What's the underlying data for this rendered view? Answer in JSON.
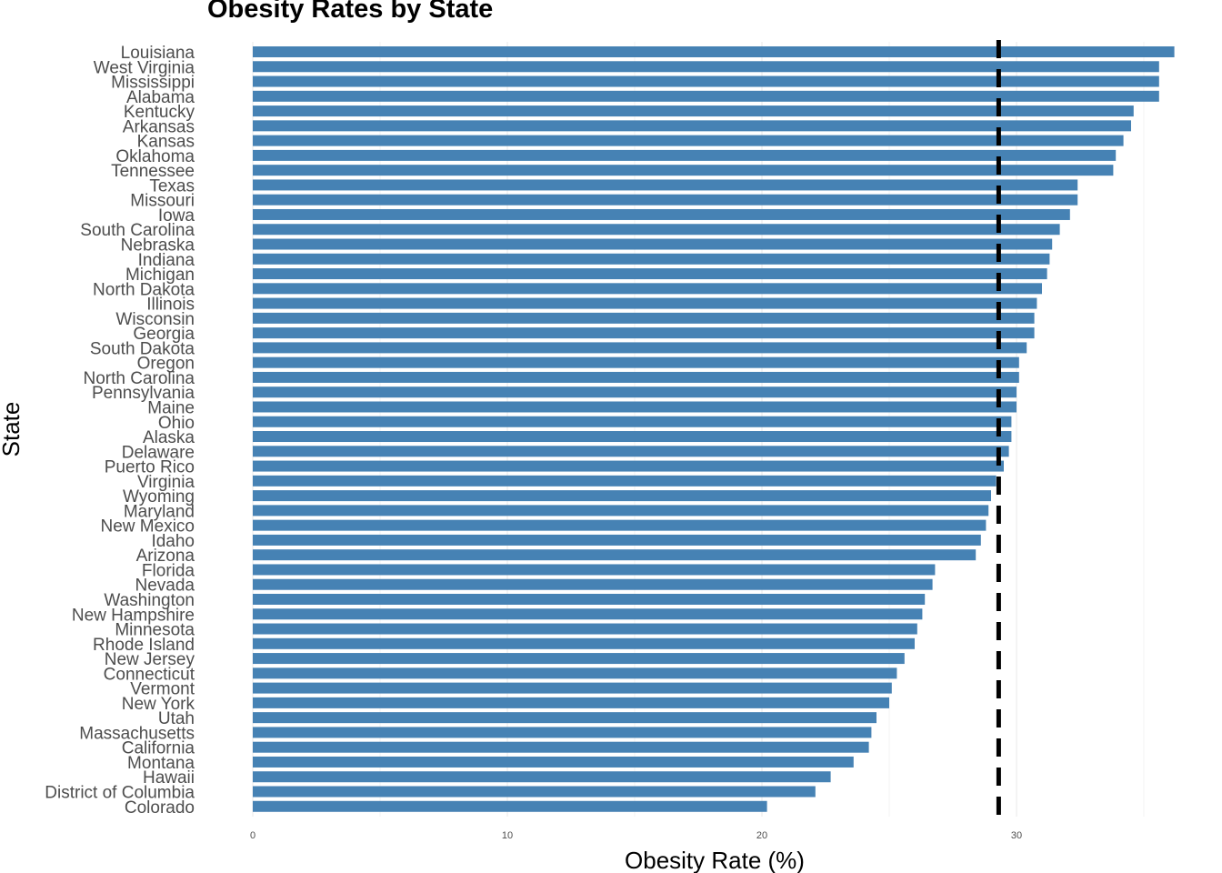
{
  "chart_data": {
    "type": "bar",
    "orientation": "horizontal",
    "title": "Obesity Rates by State",
    "xlabel": "Obesity Rate (%)",
    "ylabel": "State",
    "xlim": [
      0,
      36.5
    ],
    "x_ticks": [
      0,
      10,
      20,
      30
    ],
    "grid": true,
    "bar_color": "#4682b4",
    "reference_line": {
      "value": 29.3,
      "style": "dashed",
      "color": "#000000"
    },
    "categories": [
      "Louisiana",
      "West Virginia",
      "Mississippi",
      "Alabama",
      "Kentucky",
      "Arkansas",
      "Kansas",
      "Oklahoma",
      "Tennessee",
      "Texas",
      "Missouri",
      "Iowa",
      "South Carolina",
      "Nebraska",
      "Indiana",
      "Michigan",
      "North Dakota",
      "Illinois",
      "Wisconsin",
      "Georgia",
      "South Dakota",
      "Oregon",
      "North Carolina",
      "Pennsylvania",
      "Maine",
      "Ohio",
      "Alaska",
      "Delaware",
      "Puerto Rico",
      "Virginia",
      "Wyoming",
      "Maryland",
      "New Mexico",
      "Idaho",
      "Arizona",
      "Florida",
      "Nevada",
      "Washington",
      "New Hampshire",
      "Minnesota",
      "Rhode Island",
      "New Jersey",
      "Connecticut",
      "Vermont",
      "New York",
      "Utah",
      "Massachusetts",
      "California",
      "Montana",
      "Hawaii",
      "District of Columbia",
      "Colorado"
    ],
    "values": [
      36.2,
      35.6,
      35.6,
      35.6,
      34.6,
      34.5,
      34.2,
      33.9,
      33.8,
      32.4,
      32.4,
      32.1,
      31.7,
      31.4,
      31.3,
      31.2,
      31.0,
      30.8,
      30.7,
      30.7,
      30.4,
      30.1,
      30.1,
      30.0,
      30.0,
      29.8,
      29.8,
      29.7,
      29.5,
      29.2,
      29.0,
      28.9,
      28.8,
      28.6,
      28.4,
      26.8,
      26.7,
      26.4,
      26.3,
      26.1,
      26.0,
      25.6,
      25.3,
      25.1,
      25.0,
      24.5,
      24.3,
      24.2,
      23.6,
      22.7,
      22.1,
      20.2
    ]
  }
}
